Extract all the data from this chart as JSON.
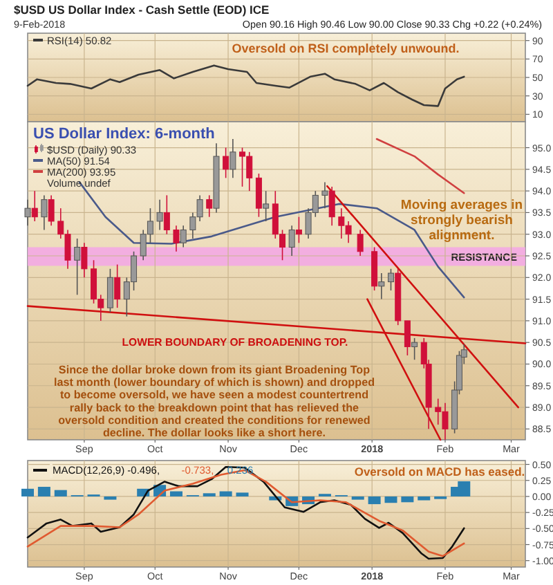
{
  "chart_data": [
    {
      "type": "line",
      "title": "$USD US Dollar Index - Cash Settle (EOD) ICE",
      "subtitle": "9-Feb-2018",
      "annotations": [
        "Open 90.16 High 90.46 Low 90.00 Close 90.33 Chg +0.22 (+0.24%)",
        "Oversold on RSI completely unwound."
      ],
      "xlim": [
        "2017-08-08",
        "2018-03-07"
      ],
      "xticks": [
        {
          "value": "2017-09-01",
          "label": null
        },
        {
          "value": "2017-10-01",
          "label": null
        },
        {
          "value": "2017-11-01",
          "label": null
        },
        {
          "value": "2017-12-01",
          "label": null
        },
        {
          "value": "2018-01-01",
          "label": null
        },
        {
          "value": "2018-02-01",
          "label": null
        },
        {
          "value": "2018-03-01",
          "label": null
        }
      ],
      "ylim": [
        2,
        98
      ],
      "yticks": [
        90,
        70,
        50,
        30,
        10
      ],
      "grid": true,
      "tick_labels": "y",
      "legend": "top left",
      "series": [
        {
          "name": "RSI(14) 50.82",
          "color": "#3a3a3a",
          "x": [
            "2017-08-08",
            "2017-08-12",
            "2017-08-20",
            "2017-08-26",
            "2017-09-04",
            "2017-09-12",
            "2017-09-16",
            "2017-09-24",
            "2017-10-03",
            "2017-10-09",
            "2017-10-17",
            "2017-10-26",
            "2017-11-01",
            "2017-11-09",
            "2017-11-13",
            "2017-11-21",
            "2017-11-27",
            "2017-12-06",
            "2017-12-12",
            "2017-12-16",
            "2017-12-25",
            "2017-12-31",
            "2018-01-06",
            "2018-01-12",
            "2018-01-18",
            "2018-01-23",
            "2018-01-29",
            "2018-02-01",
            "2018-02-06",
            "2018-02-09"
          ],
          "values": [
            41,
            48,
            44,
            43,
            38,
            48,
            45,
            53,
            58,
            49,
            56,
            63,
            59,
            56,
            44,
            41,
            39,
            51,
            54,
            48,
            43,
            36,
            44,
            34,
            26,
            20,
            19,
            38,
            48,
            50.82
          ]
        }
      ]
    },
    {
      "type": "candlestick",
      "title": "US Dollar Index: 6-month",
      "annotations": [
        "Volume undef",
        "Moving averages in\nstrongly bearish\nalignment.",
        "LOWER BOUNDARY OF BROADENING TOP.",
        "Since the dollar broke down from its giant Broadening Top\nlast month (lower boundary of which is shown) and dropped\nto become oversold, we have seen a modest countertrend\nrally back to the breakdown point that has relieved the\noversold condition and created the conditions for renewed\ndecline. The dollar looks like a short here."
      ],
      "xlim": [
        "2017-08-08",
        "2018-03-07"
      ],
      "xticks": [
        {
          "value": "2017-09-01",
          "label": "Sep"
        },
        {
          "value": "2017-10-01",
          "label": "Oct"
        },
        {
          "value": "2017-11-01",
          "label": "Nov"
        },
        {
          "value": "2017-12-01",
          "label": "Dec"
        },
        {
          "value": "2018-01-01",
          "label": "2018"
        },
        {
          "value": "2018-02-01",
          "label": "Feb"
        },
        {
          "value": "2018-03-01",
          "label": "Mar"
        }
      ],
      "ylim": [
        88.25,
        95.6
      ],
      "yticks": [
        {
          "value": 95,
          "label": "95.0"
        },
        94.5,
        {
          "value": 94,
          "label": "94.0"
        },
        93.5,
        {
          "value": 93,
          "label": "93.0"
        },
        92.5,
        {
          "value": 92,
          "label": "92.0"
        },
        91.5,
        {
          "value": 91,
          "label": "91.0"
        },
        90.5,
        {
          "value": 90,
          "label": "90.0"
        },
        89.5,
        {
          "value": 89,
          "label": "89.0"
        },
        88.5
      ],
      "grid": true,
      "legend": "top left",
      "bands": [
        {
          "axis": "y",
          "from": 92.27,
          "to": 92.7,
          "label": "RESISTANCE",
          "color": "#f3a6e6"
        }
      ],
      "series": [
        {
          "name": "$USD (Daily) 90.33",
          "colors": [
            "#999999",
            "#d0103a",
            "#999999",
            "#d0103a",
            "#d0103a",
            "#d0103a",
            "#999999",
            "#d0103a",
            "#d0103a",
            "#d0103a",
            "#999999",
            "#d0103a",
            "#999999",
            "#999999",
            "#999999",
            "#999999",
            "#999999",
            "#d0103a",
            "#d0103a",
            "#999999",
            "#999999",
            "#999999",
            "#d0103a",
            "#999999",
            "#d0103a",
            "#999999",
            "#d0103a",
            "#d0103a",
            "#d0103a",
            "#999999",
            "#d0103a",
            "#d0103a",
            "#999999",
            "#d0103a",
            "#999999",
            "#999999",
            "#999999",
            "#d0103a",
            "#d0103a",
            "#d0103a",
            "#d0103a",
            "#d0103a",
            "#999999",
            "#999999",
            "#d0103a",
            "#d0103a",
            "#999999",
            "#d0103a",
            "#d0103a",
            "#d0103a",
            "#d0103a",
            "#999999",
            "#999999",
            "#999999"
          ],
          "x": [
            "2017-08-08",
            "2017-08-11",
            "2017-08-15",
            "2017-08-18",
            "2017-08-22",
            "2017-08-25",
            "2017-08-29",
            "2017-09-01",
            "2017-09-05",
            "2017-09-08",
            "2017-09-12",
            "2017-09-15",
            "2017-09-19",
            "2017-09-22",
            "2017-09-26",
            "2017-09-29",
            "2017-10-03",
            "2017-10-06",
            "2017-10-10",
            "2017-10-13",
            "2017-10-17",
            "2017-10-20",
            "2017-10-24",
            "2017-10-27",
            "2017-10-31",
            "2017-11-03",
            "2017-11-07",
            "2017-11-10",
            "2017-11-14",
            "2017-11-17",
            "2017-11-21",
            "2017-11-24",
            "2017-11-28",
            "2017-12-01",
            "2017-12-05",
            "2017-12-08",
            "2017-12-12",
            "2017-12-15",
            "2017-12-19",
            "2017-12-22",
            "2017-12-27",
            "2018-01-02",
            "2018-01-05",
            "2018-01-09",
            "2018-01-12",
            "2018-01-16",
            "2018-01-19",
            "2018-01-23",
            "2018-01-25",
            "2018-01-29",
            "2018-02-01",
            "2018-02-05",
            "2018-02-07",
            "2018-02-09"
          ],
          "ohlc": [
            [
              93.4,
              93.8,
              93.2,
              93.6
            ],
            [
              93.6,
              94.0,
              93.3,
              93.4
            ],
            [
              93.4,
              93.9,
              93.1,
              93.8
            ],
            [
              93.8,
              93.9,
              93.2,
              93.3
            ],
            [
              93.3,
              93.6,
              92.9,
              93.0
            ],
            [
              93.0,
              93.1,
              92.2,
              92.4
            ],
            [
              92.4,
              92.9,
              91.6,
              92.7
            ],
            [
              92.7,
              92.8,
              92.0,
              92.2
            ],
            [
              92.2,
              92.4,
              91.4,
              91.5
            ],
            [
              91.5,
              91.6,
              91.0,
              91.3
            ],
            [
              91.3,
              92.2,
              91.2,
              92.0
            ],
            [
              92.0,
              92.3,
              91.3,
              91.5
            ],
            [
              91.5,
              92.0,
              91.1,
              91.9
            ],
            [
              91.9,
              92.6,
              91.7,
              92.5
            ],
            [
              92.5,
              93.1,
              92.4,
              93.0
            ],
            [
              93.0,
              93.6,
              92.8,
              93.3
            ],
            [
              93.3,
              93.8,
              93.1,
              93.5
            ],
            [
              93.5,
              93.9,
              93.0,
              93.1
            ],
            [
              93.1,
              93.2,
              92.6,
              92.8
            ],
            [
              92.8,
              93.2,
              92.7,
              93.1
            ],
            [
              93.1,
              93.5,
              92.9,
              93.4
            ],
            [
              93.4,
              93.9,
              93.3,
              93.8
            ],
            [
              93.8,
              93.9,
              93.4,
              93.6
            ],
            [
              93.6,
              95.1,
              93.5,
              94.8
            ],
            [
              94.8,
              95.0,
              94.3,
              94.5
            ],
            [
              94.5,
              95.2,
              94.3,
              94.9
            ],
            [
              94.9,
              95.0,
              94.1,
              94.8
            ],
            [
              94.8,
              94.9,
              94.0,
              94.3
            ],
            [
              94.3,
              94.4,
              93.4,
              93.6
            ],
            [
              93.6,
              94.0,
              93.3,
              93.7
            ],
            [
              93.7,
              94.0,
              92.9,
              93.0
            ],
            [
              93.0,
              93.1,
              92.4,
              92.7
            ],
            [
              92.7,
              93.2,
              92.5,
              93.1
            ],
            [
              93.1,
              93.4,
              92.8,
              93.0
            ],
            [
              93.0,
              93.6,
              92.9,
              93.5
            ],
            [
              93.5,
              94.0,
              93.4,
              93.9
            ],
            [
              93.9,
              94.2,
              93.6,
              94.0
            ],
            [
              94.0,
              94.1,
              93.2,
              93.4
            ],
            [
              93.4,
              93.6,
              92.9,
              93.2
            ],
            [
              93.2,
              93.3,
              92.8,
              93.0
            ],
            [
              93.0,
              93.1,
              92.5,
              92.6
            ],
            [
              92.6,
              92.7,
              91.7,
              91.8
            ],
            [
              91.8,
              92.1,
              91.5,
              91.9
            ],
            [
              91.9,
              92.2,
              91.7,
              92.1
            ],
            [
              92.1,
              92.2,
              90.9,
              91.0
            ],
            [
              91.0,
              91.0,
              90.2,
              90.4
            ],
            [
              90.4,
              90.6,
              90.1,
              90.5
            ],
            [
              90.5,
              90.6,
              89.9,
              90.0
            ],
            [
              90.0,
              90.1,
              88.5,
              89.0
            ],
            [
              89.0,
              89.2,
              88.6,
              88.9
            ],
            [
              88.9,
              89.1,
              88.25,
              88.5
            ],
            [
              88.5,
              89.6,
              88.4,
              89.4
            ],
            [
              89.4,
              90.3,
              89.3,
              90.2
            ],
            [
              90.16,
              90.46,
              90.0,
              90.33
            ]
          ]
        },
        {
          "type": "line",
          "name": "MA(50) 91.54",
          "color": "#4a5a8a",
          "x": [
            "2017-08-30",
            "2017-09-10",
            "2017-09-22",
            "2017-10-08",
            "2017-10-25",
            "2017-11-21",
            "2017-12-18",
            "2018-01-03",
            "2018-01-19",
            "2018-01-29",
            "2018-02-09"
          ],
          "values": [
            94.2,
            93.4,
            92.8,
            92.78,
            92.95,
            93.4,
            93.7,
            93.6,
            93.1,
            92.25,
            91.54
          ]
        },
        {
          "type": "line",
          "name": "MA(200) 93.95",
          "color": "#d04040",
          "x": [
            "2018-01-03",
            "2018-01-19",
            "2018-01-29",
            "2018-02-09"
          ],
          "values": [
            95.2,
            94.8,
            94.38,
            93.95
          ]
        },
        {
          "type": "line",
          "color": "#d01010",
          "x": [
            "2017-08-08",
            "2018-03-07"
          ],
          "values": [
            91.34,
            90.48
          ]
        },
        {
          "type": "line",
          "color": "#d01010",
          "x": [
            "2017-12-13",
            "2018-03-04"
          ],
          "values": [
            94.11,
            89.0
          ]
        },
        {
          "type": "line",
          "color": "#d01010",
          "x": [
            "2017-12-30",
            "2018-01-30"
          ],
          "values": [
            91.5,
            88.25
          ]
        }
      ]
    },
    {
      "type": "line",
      "annotations": [
        "Oversold on MACD has eased."
      ],
      "xlim": [
        "2017-08-08",
        "2018-03-07"
      ],
      "xticks": [
        {
          "value": "2017-09-01",
          "label": "Sep"
        },
        {
          "value": "2017-10-01",
          "label": "Oct"
        },
        {
          "value": "2017-11-01",
          "label": "Nov"
        },
        {
          "value": "2017-12-01",
          "label": "Dec"
        },
        {
          "value": "2018-01-01",
          "label": "2018"
        },
        {
          "value": "2018-02-01",
          "label": "Feb"
        },
        {
          "value": "2018-03-01",
          "label": "Mar"
        }
      ],
      "ylim": [
        -1.1,
        0.56
      ],
      "yticks": [
        {
          "value": 0.5,
          "label": "0.50"
        },
        0.25,
        {
          "value": 0,
          "label": "0.00"
        },
        -0.25,
        {
          "value": -0.5,
          "label": "-0.50"
        },
        -0.75,
        {
          "value": -1,
          "label": "-1.00"
        }
      ],
      "grid": true,
      "legend": "top left",
      "series": [
        {
          "type": "bar",
          "name": "0.236",
          "color": "#2a7fb0",
          "x": [
            "2017-08-08",
            "2017-08-15",
            "2017-08-22",
            "2017-08-29",
            "2017-09-05",
            "2017-09-12",
            "2017-09-19",
            "2017-09-26",
            "2017-10-03",
            "2017-10-10",
            "2017-10-17",
            "2017-10-24",
            "2017-10-31",
            "2017-11-07",
            "2017-11-14",
            "2017-11-21",
            "2017-11-28",
            "2017-12-05",
            "2017-12-12",
            "2017-12-19",
            "2017-12-26",
            "2018-01-02",
            "2018-01-09",
            "2018-01-16",
            "2018-01-23",
            "2018-01-30",
            "2018-02-06",
            "2018-02-09"
          ],
          "values": [
            0.12,
            0.15,
            0.1,
            0.02,
            0.03,
            -0.05,
            0.0,
            0.12,
            0.18,
            0.08,
            0.02,
            0.05,
            0.08,
            0.06,
            0.0,
            -0.06,
            -0.15,
            -0.12,
            0.04,
            0.02,
            -0.05,
            -0.12,
            -0.1,
            -0.09,
            -0.06,
            -0.04,
            0.15,
            0.236
          ]
        },
        {
          "name": "MACD(12,26,9) -0.496,",
          "color": "#111111",
          "x": [
            "2017-08-08",
            "2017-08-16",
            "2017-08-22",
            "2017-08-27",
            "2017-09-04",
            "2017-09-08",
            "2017-09-16",
            "2017-09-22",
            "2017-09-28",
            "2017-10-05",
            "2017-10-11",
            "2017-10-19",
            "2017-10-25",
            "2017-10-31",
            "2017-11-08",
            "2017-11-16",
            "2017-11-25",
            "2017-12-03",
            "2017-12-10",
            "2017-12-16",
            "2017-12-23",
            "2017-12-29",
            "2018-01-04",
            "2018-01-08",
            "2018-01-14",
            "2018-01-22",
            "2018-01-25",
            "2018-01-31",
            "2018-02-04",
            "2018-02-09"
          ],
          "values": [
            -0.64,
            -0.42,
            -0.36,
            -0.46,
            -0.42,
            -0.55,
            -0.48,
            -0.28,
            0.09,
            0.23,
            0.16,
            0.16,
            0.27,
            0.46,
            0.45,
            0.23,
            -0.17,
            -0.24,
            -0.09,
            -0.06,
            -0.13,
            -0.35,
            -0.49,
            -0.41,
            -0.57,
            -0.89,
            -0.97,
            -0.96,
            -0.78,
            -0.496
          ]
        },
        {
          "name": "-0.733,",
          "color": "#e05a30",
          "x": [
            "2017-08-08",
            "2017-08-22",
            "2017-09-04",
            "2017-09-16",
            "2017-09-24",
            "2017-10-05",
            "2017-10-17",
            "2017-10-29",
            "2017-11-08",
            "2017-11-17",
            "2017-11-28",
            "2017-12-10",
            "2017-12-21",
            "2018-01-04",
            "2018-01-14",
            "2018-01-25",
            "2018-01-31",
            "2018-02-09"
          ],
          "values": [
            -0.78,
            -0.46,
            -0.46,
            -0.48,
            -0.28,
            0.09,
            0.2,
            0.34,
            0.41,
            0.23,
            -0.09,
            -0.06,
            -0.09,
            -0.38,
            -0.53,
            -0.86,
            -0.93,
            -0.733
          ]
        }
      ]
    }
  ]
}
